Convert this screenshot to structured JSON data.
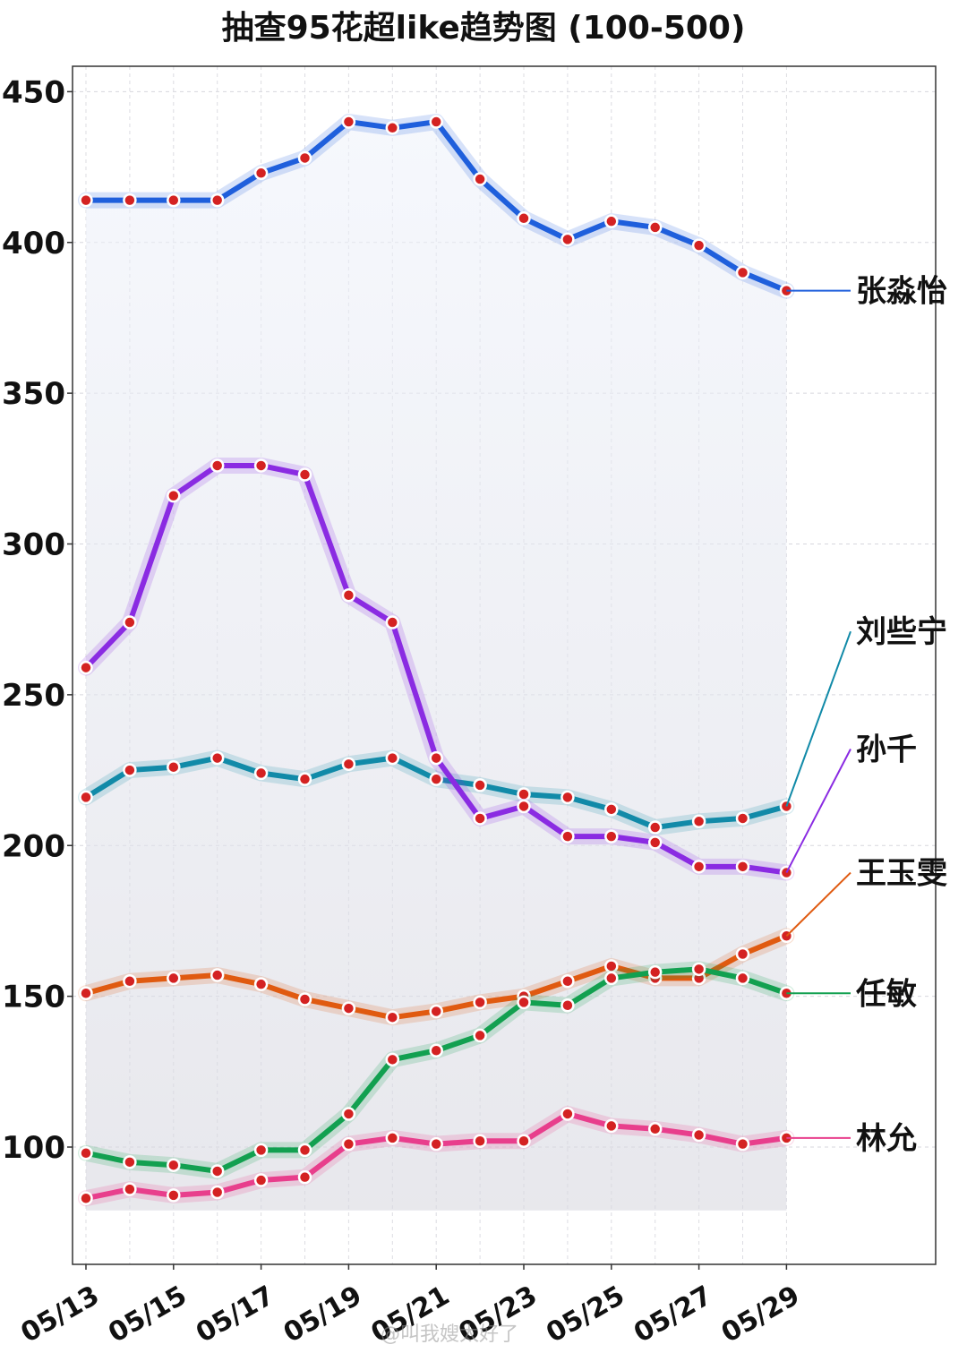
{
  "chart_data": {
    "type": "line",
    "title": "抽查95花超like趋势图 (100-500)",
    "x": [
      "05/13",
      "05/14",
      "05/15",
      "05/16",
      "05/17",
      "05/18",
      "05/19",
      "05/20",
      "05/21",
      "05/22",
      "05/23",
      "05/24",
      "05/25",
      "05/26",
      "05/27",
      "05/28",
      "05/29"
    ],
    "x_tick_labels": [
      "05/13",
      "05/15",
      "05/17",
      "05/19",
      "05/21",
      "05/23",
      "05/25",
      "05/27",
      "05/29"
    ],
    "y_ticks": [
      100,
      150,
      200,
      250,
      300,
      350,
      400,
      450
    ],
    "ylim": [
      62,
      459
    ],
    "grid": true,
    "legend": "labels at right end of each line",
    "series": [
      {
        "name": "张淼怡",
        "color": "#1f5fdc",
        "values": [
          414,
          414,
          414,
          414,
          423,
          428,
          440,
          438,
          440,
          421,
          408,
          401,
          407,
          405,
          399,
          390,
          384
        ]
      },
      {
        "name": "刘些宁",
        "color": "#118aa8",
        "values": [
          216,
          225,
          226,
          229,
          224,
          222,
          227,
          229,
          222,
          220,
          217,
          216,
          212,
          206,
          208,
          209,
          213
        ]
      },
      {
        "name": "孙千",
        "color": "#8a2be2",
        "values": [
          259,
          274,
          316,
          326,
          326,
          323,
          283,
          274,
          229,
          209,
          213,
          203,
          203,
          201,
          193,
          193,
          191
        ]
      },
      {
        "name": "王玉雯",
        "color": "#e05a10",
        "values": [
          151,
          155,
          156,
          157,
          154,
          149,
          146,
          143,
          145,
          148,
          150,
          155,
          160,
          156,
          156,
          164,
          170
        ]
      },
      {
        "name": "任敏",
        "color": "#12a050",
        "values": [
          98,
          95,
          94,
          92,
          99,
          99,
          111,
          129,
          132,
          137,
          148,
          147,
          156,
          158,
          159,
          156,
          151
        ]
      },
      {
        "name": "林允",
        "color": "#e83e8c",
        "values": [
          83,
          86,
          84,
          85,
          89,
          90,
          101,
          103,
          101,
          102,
          102,
          111,
          107,
          106,
          104,
          101,
          103
        ]
      }
    ],
    "label_values": [
      384,
      271,
      232,
      191,
      151,
      103
    ]
  },
  "watermark": "@叫我嫂太好了"
}
